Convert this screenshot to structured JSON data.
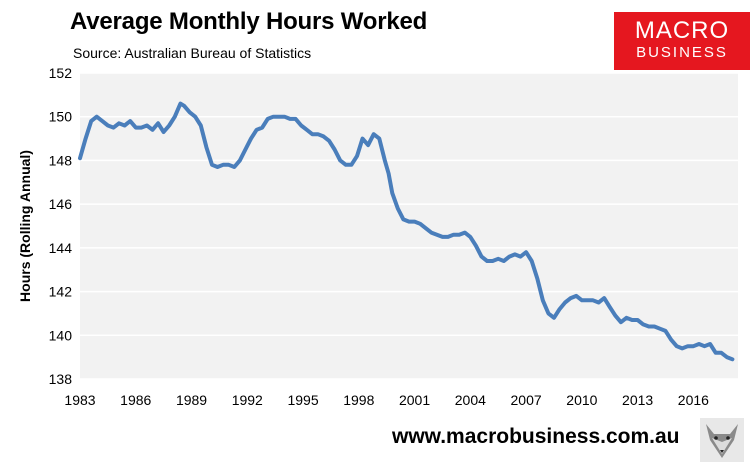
{
  "header": {
    "title": "Average Monthly Hours Worked",
    "subtitle": "Source: Australian Bureau of Statistics"
  },
  "logo": {
    "line1": "MACRO",
    "line2": "BUSINESS",
    "color": "#e5171f"
  },
  "footer": {
    "url": "www.macrobusiness.com.au"
  },
  "colors": {
    "line": "#4a7ebb",
    "plot_bg": "#f2f2f2",
    "gridline": "#ffffff"
  },
  "chart_data": {
    "type": "line",
    "title": "Average Monthly Hours Worked",
    "ylabel": "Hours (Rolling Annual)",
    "xlabel": "",
    "xlim": [
      1983,
      2018.4
    ],
    "ylim": [
      138,
      152
    ],
    "xticks": [
      1983,
      1986,
      1989,
      1992,
      1995,
      1998,
      2001,
      2004,
      2007,
      2010,
      2013,
      2016
    ],
    "yticks": [
      138,
      140,
      142,
      144,
      146,
      148,
      150,
      152
    ],
    "grid": true,
    "legend": "none",
    "series": [
      {
        "x": [
          1983.0,
          1983.3,
          1983.6,
          1983.9,
          1984.2,
          1984.5,
          1984.8,
          1985.1,
          1985.4,
          1985.7,
          1986.0,
          1986.3,
          1986.6,
          1986.9,
          1987.2,
          1987.5,
          1987.8,
          1988.1,
          1988.4,
          1988.6,
          1988.9,
          1989.2,
          1989.5,
          1989.8,
          1990.1,
          1990.4,
          1990.7,
          1991.0,
          1991.3,
          1991.6,
          1991.9,
          1992.2,
          1992.5,
          1992.8,
          1993.1,
          1993.4,
          1993.7,
          1994.0,
          1994.3,
          1994.6,
          1994.9,
          1995.2,
          1995.5,
          1995.8,
          1996.1,
          1996.4,
          1996.7,
          1997.0,
          1997.3,
          1997.6,
          1997.9,
          1998.2,
          1998.5,
          1998.8,
          1999.1,
          1999.4,
          1999.6,
          1999.8,
          2000.1,
          2000.4,
          2000.7,
          2001.0,
          2001.3,
          2001.6,
          2001.9,
          2002.2,
          2002.5,
          2002.8,
          2003.1,
          2003.4,
          2003.7,
          2004.0,
          2004.3,
          2004.6,
          2004.9,
          2005.2,
          2005.5,
          2005.8,
          2006.1,
          2006.4,
          2006.7,
          2007.0,
          2007.3,
          2007.6,
          2007.9,
          2008.2,
          2008.5,
          2008.8,
          2009.1,
          2009.4,
          2009.7,
          2010.0,
          2010.3,
          2010.6,
          2010.9,
          2011.2,
          2011.5,
          2011.8,
          2012.1,
          2012.4,
          2012.7,
          2013.0,
          2013.3,
          2013.6,
          2013.9,
          2014.2,
          2014.5,
          2014.8,
          2015.1,
          2015.4,
          2015.7,
          2016.0,
          2016.3,
          2016.6,
          2016.9,
          2017.2,
          2017.5,
          2017.8,
          2018.1
        ],
        "y": [
          148.1,
          149.0,
          149.8,
          150.0,
          149.8,
          149.6,
          149.5,
          149.7,
          149.6,
          149.8,
          149.5,
          149.5,
          149.6,
          149.4,
          149.7,
          149.3,
          149.6,
          150.0,
          150.6,
          150.5,
          150.2,
          150.0,
          149.6,
          148.6,
          147.8,
          147.7,
          147.8,
          147.8,
          147.7,
          148.0,
          148.5,
          149.0,
          149.4,
          149.5,
          149.9,
          150.0,
          150.0,
          150.0,
          149.9,
          149.9,
          149.6,
          149.4,
          149.2,
          149.2,
          149.1,
          148.9,
          148.5,
          148.0,
          147.8,
          147.8,
          148.2,
          149.0,
          148.7,
          149.2,
          149.0,
          148.0,
          147.4,
          146.5,
          145.8,
          145.3,
          145.2,
          145.2,
          145.1,
          144.9,
          144.7,
          144.6,
          144.5,
          144.5,
          144.6,
          144.6,
          144.7,
          144.5,
          144.1,
          143.6,
          143.4,
          143.4,
          143.5,
          143.4,
          143.6,
          143.7,
          143.6,
          143.8,
          143.4,
          142.6,
          141.6,
          141.0,
          140.8,
          141.2,
          141.5,
          141.7,
          141.8,
          141.6,
          141.6,
          141.6,
          141.5,
          141.7,
          141.3,
          140.9,
          140.6,
          140.8,
          140.7,
          140.7,
          140.5,
          140.4,
          140.4,
          140.3,
          140.2,
          139.8,
          139.5,
          139.4,
          139.5,
          139.5,
          139.6,
          139.5,
          139.6,
          139.2,
          139.2,
          139.0,
          138.9
        ],
        "color": "#4a7ebb"
      }
    ]
  }
}
